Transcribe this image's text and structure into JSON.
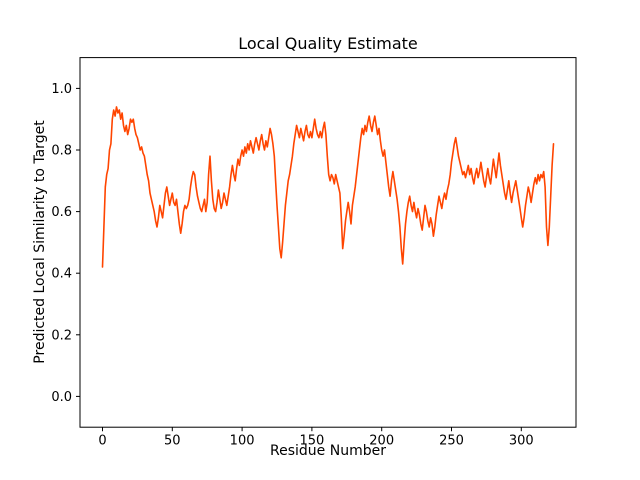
{
  "figure": {
    "background": "#ffffff"
  },
  "chart_data": {
    "type": "line",
    "title": "Local Quality Estimate",
    "xlabel": "Residue Number",
    "ylabel": "Predicted Local Similarity to Target",
    "xlim": [
      -16.15,
      339.15
    ],
    "ylim": [
      -0.1,
      1.1
    ],
    "xticks": [
      0,
      50,
      100,
      150,
      200,
      250,
      300
    ],
    "yticks": [
      "0.0",
      "0.2",
      "0.4",
      "0.6",
      "0.8",
      "1.0"
    ],
    "grid": false,
    "legend": null,
    "line_color": "#FF4500",
    "axis_color": "#000000",
    "series": [
      {
        "x_start": 0,
        "x_step": 1,
        "y": [
          0.42,
          0.55,
          0.68,
          0.72,
          0.74,
          0.8,
          0.82,
          0.9,
          0.93,
          0.91,
          0.94,
          0.92,
          0.93,
          0.9,
          0.92,
          0.88,
          0.86,
          0.88,
          0.85,
          0.87,
          0.9,
          0.89,
          0.9,
          0.87,
          0.85,
          0.84,
          0.82,
          0.8,
          0.81,
          0.79,
          0.78,
          0.75,
          0.72,
          0.7,
          0.66,
          0.64,
          0.62,
          0.6,
          0.57,
          0.55,
          0.58,
          0.62,
          0.6,
          0.58,
          0.62,
          0.66,
          0.68,
          0.65,
          0.62,
          0.64,
          0.66,
          0.63,
          0.62,
          0.64,
          0.6,
          0.56,
          0.53,
          0.56,
          0.6,
          0.62,
          0.61,
          0.62,
          0.64,
          0.68,
          0.71,
          0.73,
          0.72,
          0.68,
          0.65,
          0.63,
          0.61,
          0.6,
          0.62,
          0.64,
          0.6,
          0.63,
          0.72,
          0.78,
          0.7,
          0.64,
          0.61,
          0.6,
          0.63,
          0.67,
          0.64,
          0.61,
          0.63,
          0.66,
          0.64,
          0.62,
          0.65,
          0.68,
          0.72,
          0.75,
          0.72,
          0.7,
          0.74,
          0.77,
          0.75,
          0.78,
          0.8,
          0.78,
          0.81,
          0.79,
          0.82,
          0.8,
          0.83,
          0.81,
          0.79,
          0.82,
          0.84,
          0.82,
          0.8,
          0.83,
          0.85,
          0.82,
          0.8,
          0.83,
          0.81,
          0.84,
          0.87,
          0.85,
          0.82,
          0.78,
          0.7,
          0.62,
          0.55,
          0.48,
          0.45,
          0.5,
          0.56,
          0.62,
          0.66,
          0.7,
          0.72,
          0.75,
          0.78,
          0.82,
          0.85,
          0.88,
          0.86,
          0.84,
          0.87,
          0.85,
          0.83,
          0.86,
          0.88,
          0.85,
          0.84,
          0.86,
          0.84,
          0.87,
          0.9,
          0.87,
          0.85,
          0.84,
          0.86,
          0.84,
          0.87,
          0.89,
          0.85,
          0.78,
          0.72,
          0.7,
          0.72,
          0.71,
          0.69,
          0.72,
          0.7,
          0.68,
          0.66,
          0.58,
          0.48,
          0.52,
          0.57,
          0.6,
          0.63,
          0.6,
          0.56,
          0.62,
          0.65,
          0.68,
          0.72,
          0.76,
          0.8,
          0.84,
          0.87,
          0.85,
          0.88,
          0.86,
          0.89,
          0.91,
          0.88,
          0.86,
          0.89,
          0.91,
          0.88,
          0.85,
          0.87,
          0.83,
          0.8,
          0.78,
          0.8,
          0.76,
          0.72,
          0.68,
          0.65,
          0.7,
          0.73,
          0.7,
          0.67,
          0.64,
          0.6,
          0.55,
          0.48,
          0.43,
          0.5,
          0.56,
          0.6,
          0.63,
          0.65,
          0.62,
          0.6,
          0.63,
          0.6,
          0.58,
          0.61,
          0.59,
          0.56,
          0.54,
          0.58,
          0.62,
          0.6,
          0.57,
          0.55,
          0.58,
          0.56,
          0.52,
          0.55,
          0.59,
          0.62,
          0.65,
          0.63,
          0.61,
          0.64,
          0.66,
          0.64,
          0.67,
          0.69,
          0.72,
          0.76,
          0.79,
          0.82,
          0.84,
          0.81,
          0.78,
          0.76,
          0.74,
          0.72,
          0.73,
          0.71,
          0.73,
          0.75,
          0.72,
          0.74,
          0.71,
          0.69,
          0.72,
          0.74,
          0.71,
          0.73,
          0.76,
          0.73,
          0.7,
          0.68,
          0.71,
          0.74,
          0.71,
          0.69,
          0.73,
          0.77,
          0.74,
          0.71,
          0.75,
          0.79,
          0.75,
          0.72,
          0.69,
          0.66,
          0.64,
          0.67,
          0.7,
          0.66,
          0.63,
          0.66,
          0.68,
          0.7,
          0.67,
          0.64,
          0.61,
          0.58,
          0.55,
          0.58,
          0.62,
          0.65,
          0.68,
          0.66,
          0.63,
          0.66,
          0.69,
          0.71,
          0.69,
          0.72,
          0.7,
          0.72,
          0.71,
          0.73,
          0.68,
          0.55,
          0.49,
          0.55,
          0.65,
          0.75,
          0.82
        ]
      }
    ]
  }
}
